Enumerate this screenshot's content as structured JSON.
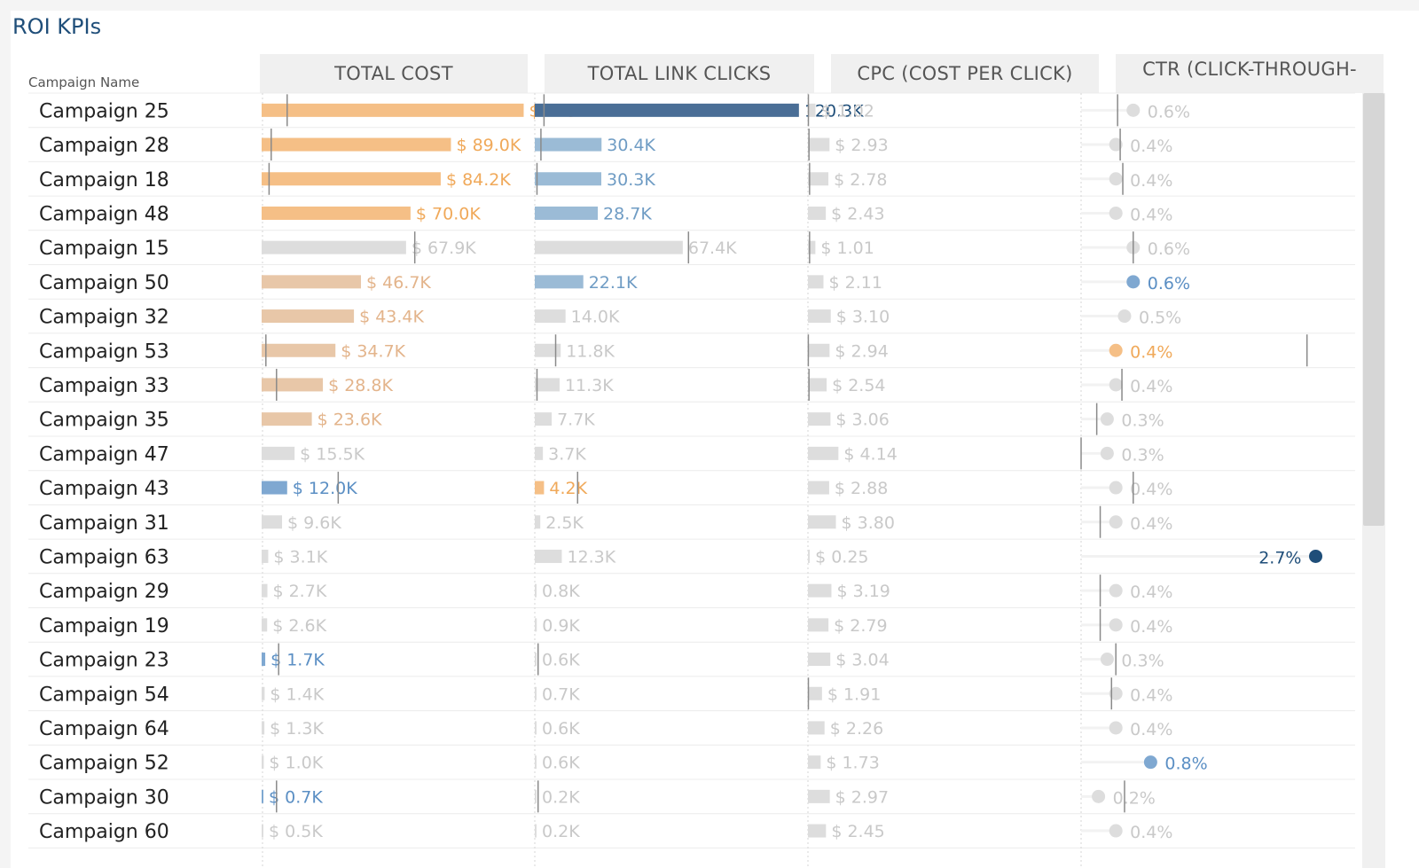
{
  "title": "ROI KPIs",
  "row_header": "Campaign Name",
  "columns": [
    {
      "key": "cost",
      "label": "TOTAL COST"
    },
    {
      "key": "clicks",
      "label": "TOTAL LINK CLICKS"
    },
    {
      "key": "cpc",
      "label": "CPC (COST PER CLICK)"
    },
    {
      "key": "ctr",
      "label": "CTR (CLICK-THROUGH-"
    }
  ],
  "colors": {
    "orange": "#f5bf86",
    "orange_text": "#f0a95a",
    "tan": "#e8c7a8",
    "tan_text": "#e3b48b",
    "gray": "#dddddd",
    "gray_text": "#c9c9c9",
    "light_blue": "#9bbbd6",
    "light_blue_text": "#6f9cc4",
    "mid_blue": "#7fa8d1",
    "dark_blue": "#4a6e96",
    "navy": "#1f4e79",
    "ref_line": "#8a8a8a"
  },
  "chart_data": {
    "type": "table",
    "rows": [
      {
        "name": "Campaign 25",
        "cost": 123.2,
        "cost_label": "$ 123.2K",
        "cost_ref": 12.0,
        "cost_color": "orange",
        "clicks": 120.3,
        "clicks_label": "120.3K",
        "clicks_ref": 4.2,
        "clicks_color": "dark_blue",
        "cpc": 1.02,
        "cpc_label": "$ 1.02",
        "cpc_ref": 0.06,
        "cpc_color": "gray",
        "ctr": 0.6,
        "ctr_label": "0.6%",
        "ctr_ref": 0.42,
        "ctr_color": "gray"
      },
      {
        "name": "Campaign 28",
        "cost": 89.0,
        "cost_label": "$ 89.0K",
        "cost_ref": 4.5,
        "cost_color": "orange",
        "clicks": 30.4,
        "clicks_label": "30.4K",
        "clicks_ref": 2.8,
        "clicks_color": "light_blue",
        "cpc": 2.93,
        "cpc_label": "$ 2.93",
        "cpc_ref": 0.14,
        "cpc_color": "gray",
        "ctr": 0.4,
        "ctr_label": "0.4%",
        "ctr_ref": 0.45,
        "ctr_color": "gray"
      },
      {
        "name": "Campaign 18",
        "cost": 84.2,
        "cost_label": "$ 84.2K",
        "cost_ref": 3.5,
        "cost_color": "orange",
        "clicks": 30.3,
        "clicks_label": "30.3K",
        "clicks_ref": 1.0,
        "clicks_color": "light_blue",
        "cpc": 2.78,
        "cpc_label": "$ 2.78",
        "cpc_ref": 0.22,
        "cpc_color": "gray",
        "ctr": 0.4,
        "ctr_label": "0.4%",
        "ctr_ref": 0.48,
        "ctr_color": "gray"
      },
      {
        "name": "Campaign 48",
        "cost": 70.0,
        "cost_label": "$ 70.0K",
        "cost_ref": null,
        "cost_color": "orange",
        "clicks": 28.7,
        "clicks_label": "28.7K",
        "clicks_ref": null,
        "clicks_color": "light_blue",
        "cpc": 2.43,
        "cpc_label": "$ 2.43",
        "cpc_ref": null,
        "cpc_color": "gray",
        "ctr": 0.4,
        "ctr_label": "0.4%",
        "ctr_ref": null,
        "ctr_color": "gray"
      },
      {
        "name": "Campaign 15",
        "cost": 67.9,
        "cost_label": "$ 67.9K",
        "cost_ref": 72.0,
        "cost_color": "gray",
        "clicks": 67.4,
        "clicks_label": "67.4K",
        "clicks_ref": 70.0,
        "clicks_color": "gray",
        "cpc": 1.01,
        "cpc_label": "$ 1.01",
        "cpc_ref": 0.22,
        "cpc_color": "gray",
        "ctr": 0.6,
        "ctr_label": "0.6%",
        "ctr_ref": 0.6,
        "ctr_color": "gray"
      },
      {
        "name": "Campaign 50",
        "cost": 46.7,
        "cost_label": "$ 46.7K",
        "cost_ref": null,
        "cost_color": "tan",
        "clicks": 22.1,
        "clicks_label": "22.1K",
        "clicks_ref": null,
        "clicks_color": "light_blue",
        "cpc": 2.11,
        "cpc_label": "$ 2.11",
        "cpc_ref": null,
        "cpc_color": "gray",
        "ctr": 0.6,
        "ctr_label": "0.6%",
        "ctr_ref": null,
        "ctr_color": "mid_blue"
      },
      {
        "name": "Campaign 32",
        "cost": 43.4,
        "cost_label": "$ 43.4K",
        "cost_ref": null,
        "cost_color": "tan",
        "clicks": 14.0,
        "clicks_label": "14.0K",
        "clicks_ref": null,
        "clicks_color": "gray",
        "cpc": 3.1,
        "cpc_label": "$ 3.10",
        "cpc_ref": null,
        "cpc_color": "gray",
        "ctr": 0.5,
        "ctr_label": "0.5%",
        "ctr_ref": null,
        "ctr_color": "gray"
      },
      {
        "name": "Campaign 53",
        "cost": 34.7,
        "cost_label": "$ 34.7K",
        "cost_ref": 2.0,
        "cost_color": "tan",
        "clicks": 11.8,
        "clicks_label": "11.8K",
        "clicks_ref": 9.5,
        "clicks_color": "gray",
        "cpc": 2.94,
        "cpc_label": "$ 2.94",
        "cpc_ref": 0.05,
        "cpc_color": "gray",
        "ctr": 0.4,
        "ctr_label": "0.4%",
        "ctr_ref": 2.6,
        "ctr_color": "orange"
      },
      {
        "name": "Campaign 33",
        "cost": 28.8,
        "cost_label": "$ 28.8K",
        "cost_ref": 7.0,
        "cost_color": "tan",
        "clicks": 11.3,
        "clicks_label": "11.3K",
        "clicks_ref": 1.0,
        "clicks_color": "gray",
        "cpc": 2.54,
        "cpc_label": "$ 2.54",
        "cpc_ref": 0.14,
        "cpc_color": "gray",
        "ctr": 0.4,
        "ctr_label": "0.4%",
        "ctr_ref": 0.47,
        "ctr_color": "gray"
      },
      {
        "name": "Campaign 35",
        "cost": 23.6,
        "cost_label": "$ 23.6K",
        "cost_ref": null,
        "cost_color": "tan",
        "clicks": 7.7,
        "clicks_label": "7.7K",
        "clicks_ref": null,
        "clicks_color": "gray",
        "cpc": 3.06,
        "cpc_label": "$ 3.06",
        "cpc_ref": null,
        "cpc_color": "gray",
        "ctr": 0.3,
        "ctr_label": "0.3%",
        "ctr_ref": 0.18,
        "ctr_color": "gray"
      },
      {
        "name": "Campaign 47",
        "cost": 15.5,
        "cost_label": "$ 15.5K",
        "cost_ref": null,
        "cost_color": "gray",
        "clicks": 3.7,
        "clicks_label": "3.7K",
        "clicks_ref": null,
        "clicks_color": "gray",
        "cpc": 4.14,
        "cpc_label": "$ 4.14",
        "cpc_ref": null,
        "cpc_color": "gray",
        "ctr": 0.3,
        "ctr_label": "0.3%",
        "ctr_ref": 0.0,
        "ctr_color": "gray"
      },
      {
        "name": "Campaign 43",
        "cost": 12.0,
        "cost_label": "$ 12.0K",
        "cost_ref": 36.0,
        "cost_color": "mid_blue",
        "clicks": 4.2,
        "clicks_label": "4.2K",
        "clicks_ref": 19.5,
        "clicks_color": "orange",
        "cpc": 2.88,
        "cpc_label": "$ 2.88",
        "cpc_ref": null,
        "cpc_color": "gray",
        "ctr": 0.4,
        "ctr_label": "0.4%",
        "ctr_ref": 0.6,
        "ctr_color": "gray"
      },
      {
        "name": "Campaign 31",
        "cost": 9.6,
        "cost_label": "$ 9.6K",
        "cost_ref": null,
        "cost_color": "gray",
        "clicks": 2.5,
        "clicks_label": "2.5K",
        "clicks_ref": null,
        "clicks_color": "gray",
        "cpc": 3.8,
        "cpc_label": "$ 3.80",
        "cpc_ref": null,
        "cpc_color": "gray",
        "ctr": 0.4,
        "ctr_label": "0.4%",
        "ctr_ref": 0.22,
        "ctr_color": "gray"
      },
      {
        "name": "Campaign 63",
        "cost": 3.1,
        "cost_label": "$ 3.1K",
        "cost_ref": null,
        "cost_color": "gray",
        "clicks": 12.3,
        "clicks_label": "12.3K",
        "clicks_ref": null,
        "clicks_color": "gray",
        "cpc": 0.25,
        "cpc_label": "$ 0.25",
        "cpc_ref": null,
        "cpc_color": "gray",
        "ctr": 2.7,
        "ctr_label": "2.7%",
        "ctr_ref": null,
        "ctr_color": "navy"
      },
      {
        "name": "Campaign 29",
        "cost": 2.7,
        "cost_label": "$ 2.7K",
        "cost_ref": null,
        "cost_color": "gray",
        "clicks": 0.8,
        "clicks_label": "0.8K",
        "clicks_ref": null,
        "clicks_color": "gray",
        "cpc": 3.19,
        "cpc_label": "$ 3.19",
        "cpc_ref": null,
        "cpc_color": "gray",
        "ctr": 0.4,
        "ctr_label": "0.4%",
        "ctr_ref": 0.22,
        "ctr_color": "gray"
      },
      {
        "name": "Campaign 19",
        "cost": 2.6,
        "cost_label": "$ 2.6K",
        "cost_ref": null,
        "cost_color": "gray",
        "clicks": 0.9,
        "clicks_label": "0.9K",
        "clicks_ref": null,
        "clicks_color": "gray",
        "cpc": 2.79,
        "cpc_label": "$ 2.79",
        "cpc_ref": null,
        "cpc_color": "gray",
        "ctr": 0.4,
        "ctr_label": "0.4%",
        "ctr_ref": 0.22,
        "ctr_color": "gray"
      },
      {
        "name": "Campaign 23",
        "cost": 1.7,
        "cost_label": "$ 1.7K",
        "cost_ref": 8.0,
        "cost_color": "mid_blue",
        "clicks": 0.6,
        "clicks_label": "0.6K",
        "clicks_ref": 1.5,
        "clicks_color": "gray",
        "cpc": 3.04,
        "cpc_label": "$ 3.04",
        "cpc_ref": null,
        "cpc_color": "gray",
        "ctr": 0.3,
        "ctr_label": "0.3%",
        "ctr_ref": 0.4,
        "ctr_color": "gray"
      },
      {
        "name": "Campaign 54",
        "cost": 1.4,
        "cost_label": "$ 1.4K",
        "cost_ref": null,
        "cost_color": "gray",
        "clicks": 0.7,
        "clicks_label": "0.7K",
        "clicks_ref": null,
        "clicks_color": "gray",
        "cpc": 1.91,
        "cpc_label": "$ 1.91",
        "cpc_ref": 0.06,
        "cpc_color": "gray",
        "ctr": 0.4,
        "ctr_label": "0.4%",
        "ctr_ref": 0.35,
        "ctr_color": "gray"
      },
      {
        "name": "Campaign 64",
        "cost": 1.3,
        "cost_label": "$ 1.3K",
        "cost_ref": null,
        "cost_color": "gray",
        "clicks": 0.6,
        "clicks_label": "0.6K",
        "clicks_ref": null,
        "clicks_color": "gray",
        "cpc": 2.26,
        "cpc_label": "$ 2.26",
        "cpc_ref": null,
        "cpc_color": "gray",
        "ctr": 0.4,
        "ctr_label": "0.4%",
        "ctr_ref": null,
        "ctr_color": "gray"
      },
      {
        "name": "Campaign 52",
        "cost": 1.0,
        "cost_label": "$ 1.0K",
        "cost_ref": null,
        "cost_color": "gray",
        "clicks": 0.6,
        "clicks_label": "0.6K",
        "clicks_ref": null,
        "clicks_color": "gray",
        "cpc": 1.73,
        "cpc_label": "$ 1.73",
        "cpc_ref": null,
        "cpc_color": "gray",
        "ctr": 0.8,
        "ctr_label": "0.8%",
        "ctr_ref": null,
        "ctr_color": "mid_blue"
      },
      {
        "name": "Campaign 30",
        "cost": 0.7,
        "cost_label": "$ 0.7K",
        "cost_ref": 7.0,
        "cost_color": "mid_blue",
        "clicks": 0.2,
        "clicks_label": "0.2K",
        "clicks_ref": 1.5,
        "clicks_color": "gray",
        "cpc": 2.97,
        "cpc_label": "$ 2.97",
        "cpc_ref": null,
        "cpc_color": "gray",
        "ctr": 0.2,
        "ctr_label": "0.2%",
        "ctr_ref": 0.5,
        "ctr_color": "gray"
      },
      {
        "name": "Campaign 60",
        "cost": 0.5,
        "cost_label": "$ 0.5K",
        "cost_ref": null,
        "cost_color": "gray",
        "clicks": 0.2,
        "clicks_label": "0.2K",
        "clicks_ref": null,
        "clicks_color": "gray",
        "cpc": 2.45,
        "cpc_label": "$ 2.45",
        "cpc_ref": null,
        "cpc_color": "gray",
        "ctr": 0.4,
        "ctr_label": "0.4%",
        "ctr_ref": null,
        "ctr_color": "gray"
      }
    ]
  }
}
